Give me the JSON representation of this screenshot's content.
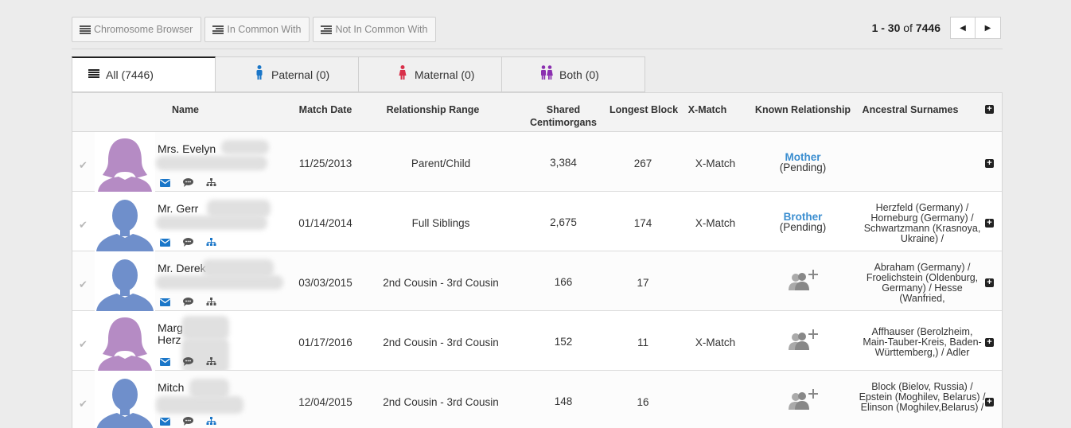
{
  "toolbar": {
    "chromosome_browser": "Chromosome Browser",
    "in_common_with": "In Common With",
    "not_in_common_with": "Not In Common With"
  },
  "pager": {
    "range": "1 - 30",
    "of": "of",
    "total": "7446"
  },
  "tabs": [
    {
      "label": "All (7446)",
      "icon": "list-icon"
    },
    {
      "label": "Paternal (0)",
      "icon": "male-icon",
      "color": "#1a76c8"
    },
    {
      "label": "Maternal (0)",
      "icon": "female-icon",
      "color": "#d9304a"
    },
    {
      "label": "Both (0)",
      "icon": "couple-icon",
      "color": "#8b2fb0"
    }
  ],
  "columns": {
    "name": "Name",
    "match_date": "Match Date",
    "relationship_range": "Relationship Range",
    "shared_cm": "Shared Centimorgans",
    "longest_block": "Longest Block",
    "x_match": "X-Match",
    "known_relationship": "Known Relationship",
    "ancestral_surnames": "Ancestral Surnames"
  },
  "colors": {
    "female_avatar": "#b58bc4",
    "male_avatar": "#6f8fcb",
    "link": "#3b8ed0",
    "action_icon": "#1a76c8"
  },
  "rows": [
    {
      "gender": "female",
      "name": "Mrs. Evelyn",
      "name2": "",
      "date": "11/25/2013",
      "range": "Parent/Child",
      "cm": "3,384",
      "block": "267",
      "x": "X-Match",
      "known": "Mother",
      "pending": "(Pending)",
      "surnames": ""
    },
    {
      "gender": "male",
      "name": "Mr. Gerr",
      "name2": "",
      "date": "01/14/2014",
      "range": "Full Siblings",
      "cm": "2,675",
      "block": "174",
      "x": "X-Match",
      "known": "Brother",
      "pending": "(Pending)",
      "surnames": "Herzfeld (Germany) / Horneburg (Germany) / Schwartzmann (Krasnoya, Ukraine) /"
    },
    {
      "gender": "male",
      "name": "Mr. Derek",
      "name2": "",
      "date": "03/03/2015",
      "range": "2nd Cousin - 3rd Cousin",
      "cm": "166",
      "block": "17",
      "x": "",
      "known": "",
      "pending": "",
      "surnames": "Abraham (Germany) / Froelichstein (Oldenburg, Germany) / Hesse (Wanfried,"
    },
    {
      "gender": "female",
      "name": "Marg",
      "name2": "Herz",
      "date": "01/17/2016",
      "range": "2nd Cousin - 3rd Cousin",
      "cm": "152",
      "block": "11",
      "x": "X-Match",
      "known": "",
      "pending": "",
      "surnames": "Affhauser (Berolzheim, Main-Tauber-Kreis, Baden-Württemberg,) / Adler"
    },
    {
      "gender": "male",
      "name": "Mitch",
      "name2": "",
      "date": "12/04/2015",
      "range": "2nd Cousin - 3rd Cousin",
      "cm": "148",
      "block": "16",
      "x": "",
      "known": "",
      "pending": "",
      "surnames": "Block (Bielov, Russia) / Epstein (Moghilev, Belarus) / Elinson (Moghilev,Belarus) /"
    }
  ]
}
